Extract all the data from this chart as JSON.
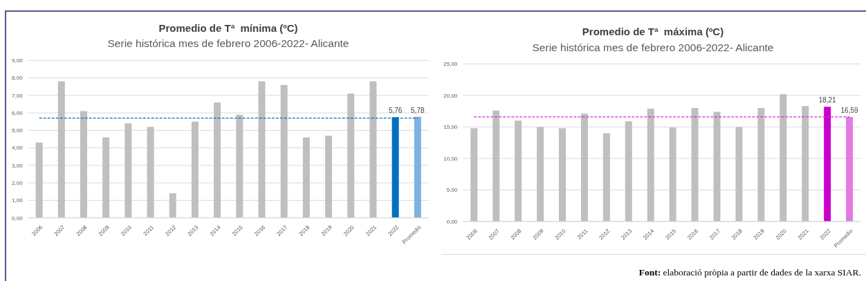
{
  "chart_data": [
    {
      "type": "bar",
      "title": "Promedio de Tª  mínima (ºC)",
      "subtitle": "Serie histórica mes de febrero 2006-2022- Alicante",
      "categories": [
        "2006",
        "2007",
        "2008",
        "2009",
        "2010",
        "2011",
        "2012",
        "2013",
        "2014",
        "2015",
        "2016",
        "2017",
        "2018",
        "2019",
        "2020",
        "2021",
        "2022",
        "Promedio"
      ],
      "values": [
        4.3,
        7.8,
        6.1,
        4.6,
        5.4,
        5.2,
        1.4,
        5.5,
        6.6,
        5.9,
        7.8,
        7.6,
        4.6,
        4.7,
        7.1,
        7.8,
        5.76,
        5.78
      ],
      "colors": [
        "#bfbfbf",
        "#bfbfbf",
        "#bfbfbf",
        "#bfbfbf",
        "#bfbfbf",
        "#bfbfbf",
        "#bfbfbf",
        "#bfbfbf",
        "#bfbfbf",
        "#bfbfbf",
        "#bfbfbf",
        "#bfbfbf",
        "#bfbfbf",
        "#bfbfbf",
        "#bfbfbf",
        "#bfbfbf",
        "#0070c0",
        "#7fb2e0"
      ],
      "value_labels": [
        null,
        null,
        null,
        null,
        null,
        null,
        null,
        null,
        null,
        null,
        null,
        null,
        null,
        null,
        null,
        null,
        "5,76",
        "5,78"
      ],
      "ylim": [
        0,
        9
      ],
      "yticks": [
        {
          "value": 0,
          "label": "0,00"
        },
        {
          "value": 1,
          "label": "1,00"
        },
        {
          "value": 2,
          "label": "2,00"
        },
        {
          "value": 3,
          "label": "3,00"
        },
        {
          "value": 4,
          "label": "4,00"
        },
        {
          "value": 5,
          "label": "5,00"
        },
        {
          "value": 6,
          "label": "6,00"
        },
        {
          "value": 7,
          "label": "7,00"
        },
        {
          "value": 8,
          "label": "8,00"
        },
        {
          "value": 9,
          "label": "9,00"
        }
      ],
      "grid": "y",
      "ref_lines": [
        {
          "axis": "y",
          "value": 5.7,
          "color": "#0070c0",
          "line_style": "dashed"
        }
      ]
    },
    {
      "type": "bar",
      "title": "Promedio de Tª  máxima (ºC)",
      "subtitle": "Serie histórica mes de febrero 2006-2022- Alicante",
      "categories": [
        "2006",
        "2007",
        "2008",
        "2009",
        "2010",
        "2011",
        "2012",
        "2013",
        "2014",
        "2015",
        "2016",
        "2017",
        "2018",
        "2019",
        "2020",
        "2021",
        "2022",
        "Promedio"
      ],
      "values": [
        14.8,
        17.6,
        16.0,
        15.0,
        14.8,
        17.1,
        14.0,
        15.9,
        17.9,
        14.9,
        18.0,
        17.4,
        15.0,
        18.0,
        20.2,
        18.3,
        18.21,
        16.59
      ],
      "colors": [
        "#bfbfbf",
        "#bfbfbf",
        "#bfbfbf",
        "#bfbfbf",
        "#bfbfbf",
        "#bfbfbf",
        "#bfbfbf",
        "#bfbfbf",
        "#bfbfbf",
        "#bfbfbf",
        "#bfbfbf",
        "#bfbfbf",
        "#bfbfbf",
        "#bfbfbf",
        "#bfbfbf",
        "#bfbfbf",
        "#cc00cc",
        "#e27ae2"
      ],
      "value_labels": [
        null,
        null,
        null,
        null,
        null,
        null,
        null,
        null,
        null,
        null,
        null,
        null,
        null,
        null,
        null,
        null,
        "18,21",
        "16,59"
      ],
      "ylim": [
        0,
        25
      ],
      "yticks": [
        {
          "value": 0,
          "label": "0,00"
        },
        {
          "value": 5,
          "label": "5,00"
        },
        {
          "value": 10,
          "label": "10,00"
        },
        {
          "value": 15,
          "label": "15,00"
        },
        {
          "value": 20,
          "label": "20,00"
        },
        {
          "value": 25,
          "label": "25,00"
        }
      ],
      "grid": "y",
      "ref_lines": [
        {
          "axis": "y",
          "value": 16.59,
          "color": "#dd22dd",
          "line_style": "dashed"
        }
      ],
      "annotations": [
        "Font: elaboració pròpia a partir de dades de la xarxa SIAR."
      ]
    }
  ]
}
